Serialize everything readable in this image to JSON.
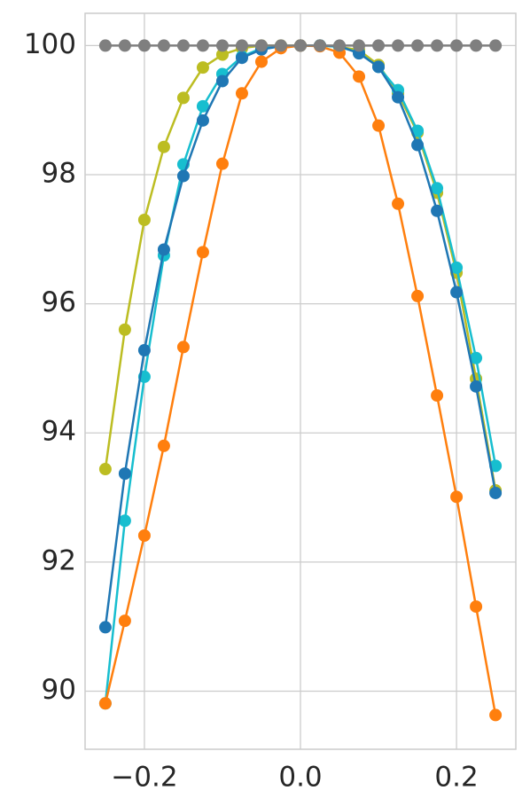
{
  "chart_data": {
    "type": "line",
    "x": [
      -0.25,
      -0.225,
      -0.2,
      -0.175,
      -0.15,
      -0.125,
      -0.1,
      -0.075,
      -0.05,
      -0.025,
      0,
      0.025,
      0.05,
      0.075,
      0.1,
      0.125,
      0.15,
      0.175,
      0.2,
      0.225,
      0.25
    ],
    "series": [
      {
        "color": "#bcbd22",
        "values": [
          93.44,
          95.6,
          97.3,
          98.43,
          99.19,
          99.66,
          99.86,
          99.96,
          100,
          100,
          100,
          100,
          99.98,
          99.93,
          99.7,
          99.26,
          98.65,
          97.72,
          96.48,
          94.84,
          93.11
        ]
      },
      {
        "color": "#17becf",
        "values": [
          89.81,
          92.64,
          94.87,
          96.75,
          98.16,
          99.06,
          99.56,
          99.83,
          99.96,
          99.99,
          100,
          100,
          99.98,
          99.89,
          99.67,
          99.31,
          98.68,
          97.79,
          96.56,
          95.16,
          93.49
        ]
      },
      {
        "color": "#1f77b4",
        "values": [
          90.99,
          93.37,
          95.28,
          96.84,
          97.98,
          98.84,
          99.45,
          99.81,
          99.94,
          99.99,
          100,
          100,
          99.99,
          99.88,
          99.67,
          99.2,
          98.46,
          97.44,
          96.18,
          94.72,
          93.07
        ]
      },
      {
        "color": "#ff7f0e",
        "values": [
          89.81,
          91.09,
          92.41,
          93.8,
          95.33,
          96.8,
          98.17,
          99.26,
          99.75,
          99.96,
          100,
          99.99,
          99.89,
          99.52,
          98.76,
          97.55,
          96.12,
          94.58,
          93.01,
          91.31,
          89.63
        ]
      },
      {
        "color": "#7f7f7f",
        "values": [
          100,
          100,
          100,
          100,
          100,
          100,
          100,
          100,
          100,
          100,
          100,
          100,
          100,
          100,
          100,
          100,
          100,
          100,
          100,
          100,
          100
        ]
      }
    ],
    "xlim": [
      -0.276,
      0.276
    ],
    "ylim": [
      89.1,
      100.5
    ],
    "xticks": [
      {
        "value": -0.2,
        "label": "−0.2"
      },
      {
        "value": 0,
        "label": "0.0"
      },
      0.2
    ],
    "yticks": [
      90,
      92,
      94,
      96,
      98,
      100
    ],
    "grid": true
  }
}
